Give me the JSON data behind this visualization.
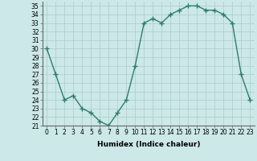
{
  "x": [
    0,
    1,
    2,
    3,
    4,
    5,
    6,
    7,
    8,
    9,
    10,
    11,
    12,
    13,
    14,
    15,
    16,
    17,
    18,
    19,
    20,
    21,
    22,
    23
  ],
  "y": [
    30,
    27,
    24,
    24.5,
    23,
    22.5,
    21.5,
    21,
    22.5,
    24,
    28,
    33,
    33.5,
    33,
    34,
    34.5,
    35,
    35,
    34.5,
    34.5,
    34,
    33,
    27,
    24
  ],
  "xlabel": "Humidex (Indice chaleur)",
  "line_color": "#2e7d6e",
  "marker": "+",
  "marker_size": 4,
  "line_width": 1.0,
  "bg_color": "#cce8e8",
  "grid_color": "#aacccc",
  "ylim": [
    21,
    35.5
  ],
  "xlim": [
    -0.5,
    23.5
  ],
  "yticks": [
    21,
    22,
    23,
    24,
    25,
    26,
    27,
    28,
    29,
    30,
    31,
    32,
    33,
    34,
    35
  ],
  "xticks": [
    0,
    1,
    2,
    3,
    4,
    5,
    6,
    7,
    8,
    9,
    10,
    11,
    12,
    13,
    14,
    15,
    16,
    17,
    18,
    19,
    20,
    21,
    22,
    23
  ],
  "tick_fontsize": 5.5,
  "label_fontsize": 6.5
}
